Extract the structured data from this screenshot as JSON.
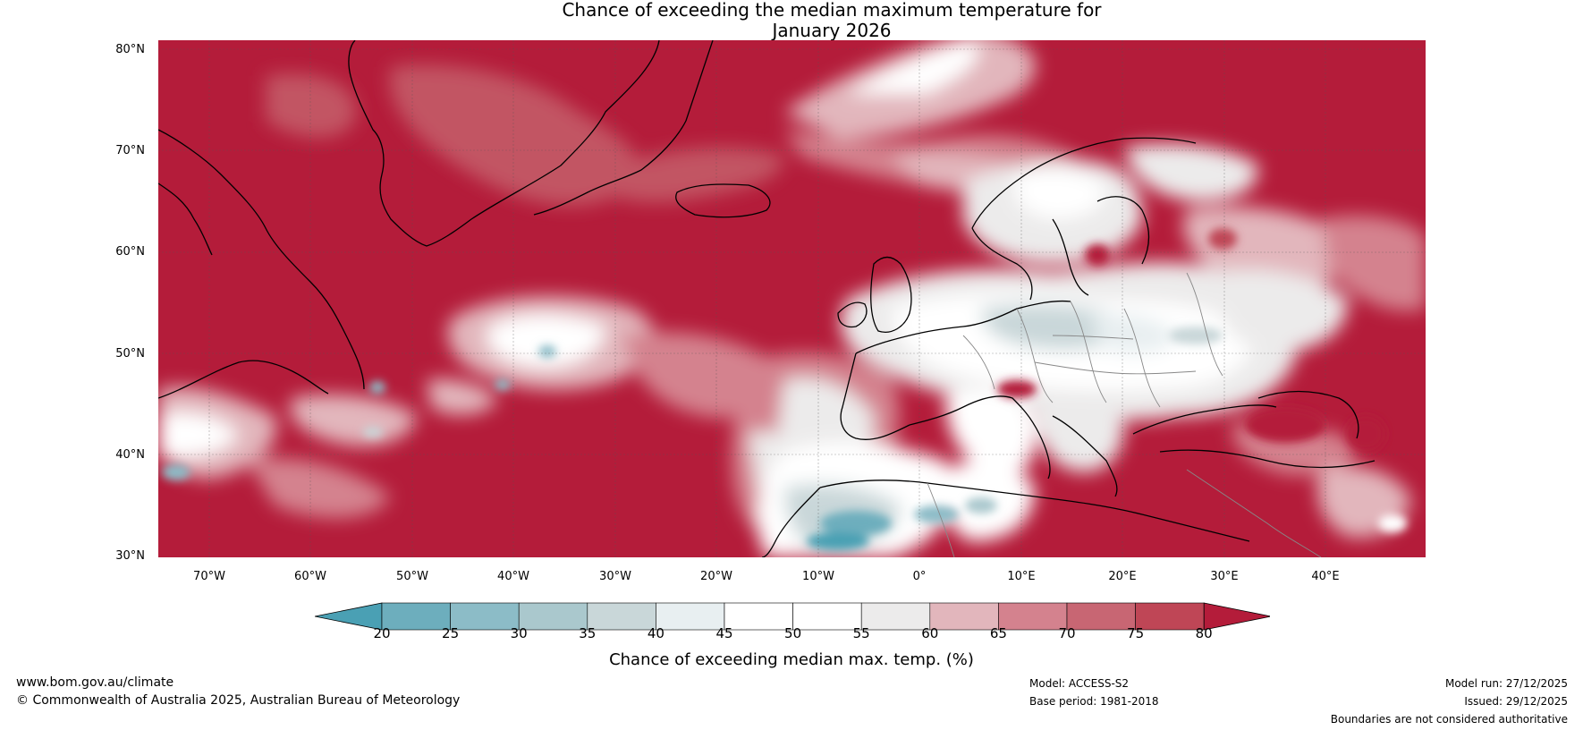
{
  "title_line1": "Chance of exceeding the median maximum temperature for",
  "title_line2": "January 2026",
  "map": {
    "lat_labels": [
      "80°N",
      "70°N",
      "60°N",
      "50°N",
      "40°N",
      "30°N"
    ],
    "lon_labels": [
      "70°W",
      "60°W",
      "50°W",
      "40°W",
      "30°W",
      "20°W",
      "10°W",
      "0°",
      "10°E",
      "20°E",
      "30°E",
      "40°E"
    ],
    "dominant_color": "#b41c3a",
    "land_outline_color": "#000000"
  },
  "colorbar": {
    "ticks": [
      "20",
      "25",
      "30",
      "35",
      "40",
      "45",
      "50",
      "55",
      "60",
      "65",
      "70",
      "75",
      "80"
    ],
    "colors": [
      "#4aa0b4",
      "#6daebd",
      "#8cbcc7",
      "#aac8cd",
      "#c9d7d9",
      "#e8eff1",
      "#ffffff",
      "#ffffff",
      "#ecebeb",
      "#e2b6bc",
      "#d4828e",
      "#c86673",
      "#bf4656",
      "#b41c3a"
    ],
    "label": "Chance of exceeding median max. temp. (%)"
  },
  "footer": {
    "website": "www.bom.gov.au/climate",
    "copyright": "© Commonwealth of Australia 2025, Australian Bureau of Meteorology",
    "model": "Model: ACCESS-S2",
    "base_period": "Base period: 1981-2018",
    "model_run": "Model run: 27/12/2025",
    "issued": "Issued: 29/12/2025",
    "disclaimer": "Boundaries are not considered authoritative"
  }
}
